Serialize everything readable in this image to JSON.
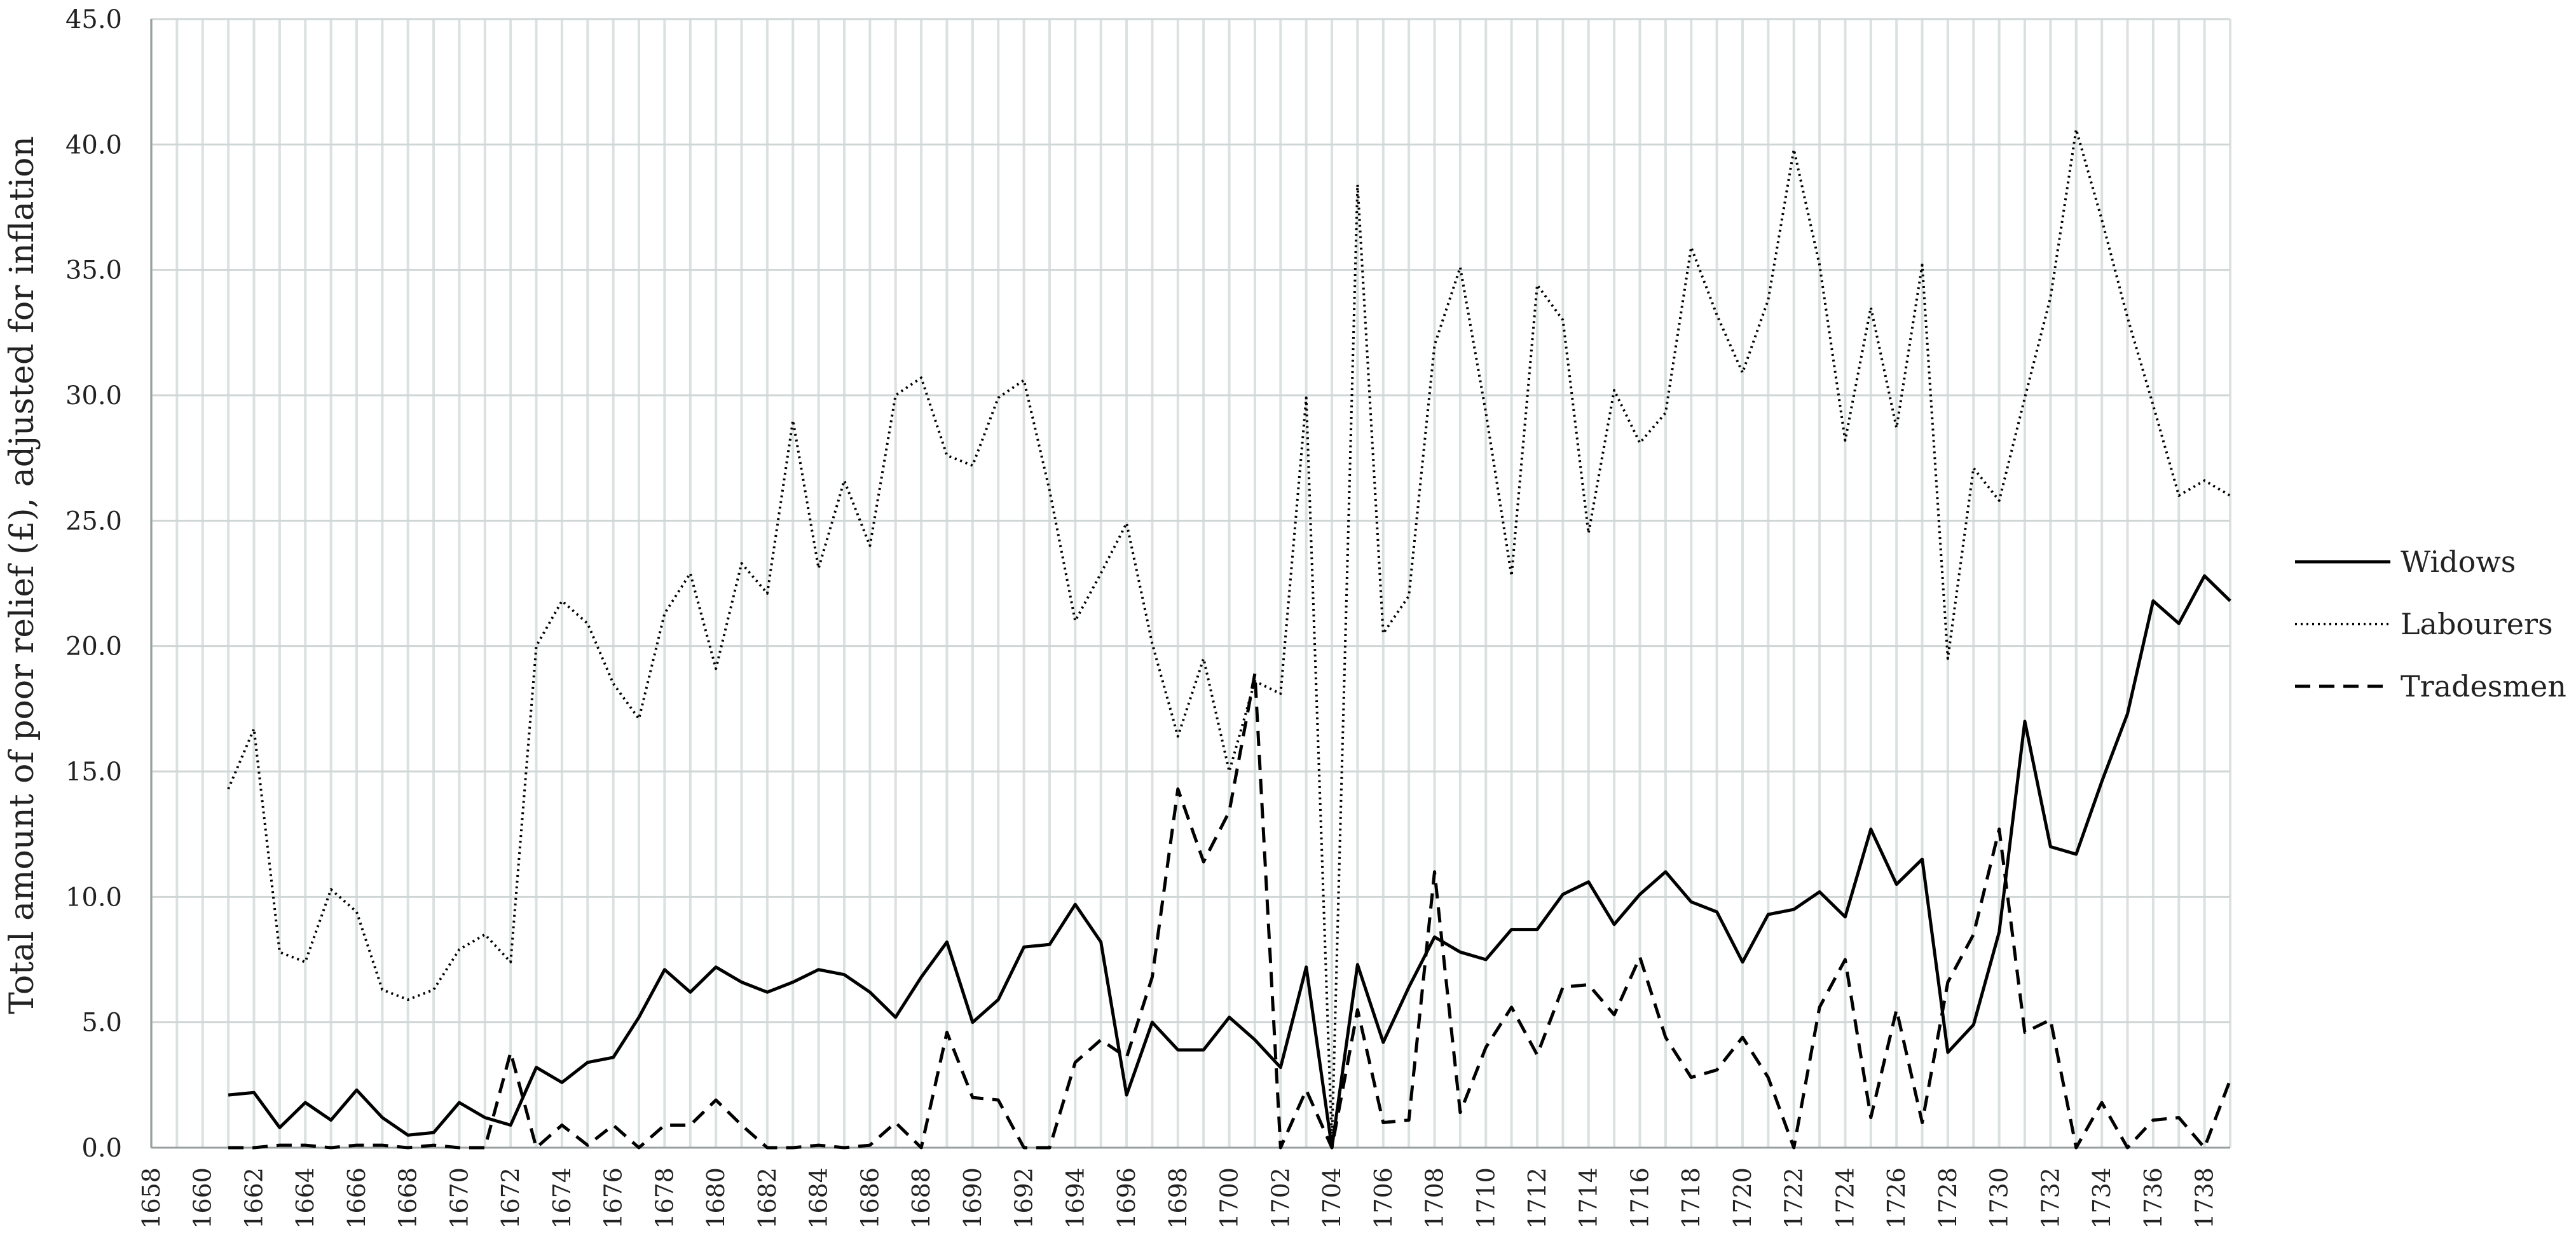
{
  "chart_data": {
    "type": "line",
    "title": "",
    "xlabel": "",
    "ylabel": "Total amount of poor relief (£), adjusted for inflation",
    "ylim": [
      0,
      45
    ],
    "yticks": [
      "0.0",
      "5.0",
      "10.0",
      "15.0",
      "20.0",
      "25.0",
      "30.0",
      "35.0",
      "40.0",
      "45.0"
    ],
    "xlim": [
      1658,
      1739
    ],
    "xticks": [
      1658,
      1660,
      1662,
      1664,
      1666,
      1668,
      1670,
      1672,
      1674,
      1676,
      1678,
      1680,
      1682,
      1684,
      1686,
      1688,
      1690,
      1692,
      1694,
      1696,
      1698,
      1700,
      1702,
      1704,
      1706,
      1708,
      1710,
      1712,
      1714,
      1716,
      1718,
      1720,
      1722,
      1724,
      1726,
      1728,
      1730,
      1732,
      1734,
      1736,
      1738
    ],
    "grid": "vertical-and-horizontal",
    "legend": "right",
    "series": [
      {
        "name": "Widows",
        "style": "solid",
        "color": "#000000",
        "x": [
          1661,
          1662,
          1663,
          1664,
          1665,
          1666,
          1667,
          1668,
          1669,
          1670,
          1671,
          1672,
          1673,
          1674,
          1675,
          1676,
          1677,
          1678,
          1679,
          1680,
          1681,
          1682,
          1683,
          1684,
          1685,
          1686,
          1687,
          1688,
          1689,
          1690,
          1691,
          1692,
          1693,
          1694,
          1695,
          1696,
          1697,
          1698,
          1699,
          1700,
          1701,
          1702,
          1703,
          1704,
          1705,
          1706,
          1707,
          1708,
          1709,
          1710,
          1711,
          1712,
          1713,
          1714,
          1715,
          1716,
          1717,
          1718,
          1719,
          1720,
          1721,
          1722,
          1723,
          1724,
          1725,
          1726,
          1727,
          1728,
          1729,
          1730,
          1731,
          1732,
          1733,
          1734,
          1735,
          1736,
          1737,
          1738,
          1739
        ],
        "values": [
          2.1,
          2.2,
          0.8,
          1.8,
          1.1,
          2.3,
          1.2,
          0.5,
          0.6,
          1.8,
          1.2,
          0.9,
          3.2,
          2.6,
          3.4,
          3.6,
          5.2,
          7.1,
          6.2,
          7.2,
          6.6,
          6.2,
          6.6,
          7.1,
          6.9,
          6.2,
          5.2,
          6.8,
          8.2,
          5.0,
          5.9,
          8.0,
          8.1,
          9.7,
          8.2,
          2.1,
          5.0,
          3.9,
          3.9,
          5.2,
          4.3,
          3.2,
          7.2,
          0.0,
          7.3,
          4.2,
          6.4,
          8.4,
          7.8,
          7.5,
          8.7,
          8.7,
          10.1,
          10.6,
          8.9,
          10.1,
          11.0,
          9.8,
          9.4,
          7.4,
          9.3,
          9.5,
          10.2,
          9.2,
          12.7,
          10.5,
          11.5,
          3.8,
          4.9,
          8.6,
          17.0,
          12.0,
          11.7,
          14.6,
          17.3,
          21.8,
          20.9,
          22.8,
          21.8
        ]
      },
      {
        "name": "Labourers",
        "style": "dotted",
        "color": "#000000",
        "x": [
          1661,
          1662,
          1663,
          1664,
          1665,
          1666,
          1667,
          1668,
          1669,
          1670,
          1671,
          1672,
          1673,
          1674,
          1675,
          1676,
          1677,
          1678,
          1679,
          1680,
          1681,
          1682,
          1683,
          1684,
          1685,
          1686,
          1687,
          1688,
          1689,
          1690,
          1691,
          1692,
          1693,
          1694,
          1695,
          1696,
          1697,
          1698,
          1699,
          1700,
          1701,
          1702,
          1703,
          1704,
          1705,
          1706,
          1707,
          1708,
          1709,
          1710,
          1711,
          1712,
          1713,
          1714,
          1715,
          1716,
          1717,
          1718,
          1719,
          1720,
          1721,
          1722,
          1723,
          1724,
          1725,
          1726,
          1727,
          1728,
          1729,
          1730,
          1731,
          1732,
          1733,
          1734,
          1735,
          1736,
          1737,
          1738,
          1739
        ],
        "values": [
          14.3,
          16.7,
          7.8,
          7.4,
          10.3,
          9.4,
          6.3,
          5.9,
          6.3,
          7.9,
          8.5,
          7.4,
          20.0,
          21.8,
          20.9,
          18.5,
          17.1,
          21.3,
          22.9,
          19.1,
          23.3,
          22.1,
          29.0,
          23.1,
          26.6,
          24.0,
          30.0,
          30.7,
          27.6,
          27.2,
          29.9,
          30.6,
          26.2,
          21.0,
          22.9,
          24.9,
          20.1,
          16.4,
          19.5,
          15.0,
          18.6,
          18.1,
          29.9,
          0.2,
          38.4,
          20.5,
          22.0,
          32.0,
          35.1,
          29.3,
          22.8,
          34.4,
          33.0,
          24.5,
          30.2,
          28.1,
          29.3,
          35.9,
          33.2,
          30.9,
          33.8,
          39.8,
          35.2,
          28.2,
          33.5,
          28.7,
          35.2,
          19.5,
          27.1,
          25.8,
          29.9,
          33.9,
          40.6,
          37.0,
          33.1,
          29.6,
          26.0,
          26.6,
          26.0
        ]
      },
      {
        "name": "Tradesmen",
        "style": "dashed",
        "color": "#000000",
        "x": [
          1661,
          1662,
          1663,
          1664,
          1665,
          1666,
          1667,
          1668,
          1669,
          1670,
          1671,
          1672,
          1673,
          1674,
          1675,
          1676,
          1677,
          1678,
          1679,
          1680,
          1681,
          1682,
          1683,
          1684,
          1685,
          1686,
          1687,
          1688,
          1689,
          1690,
          1691,
          1692,
          1693,
          1694,
          1695,
          1696,
          1697,
          1698,
          1699,
          1700,
          1701,
          1702,
          1703,
          1704,
          1705,
          1706,
          1707,
          1708,
          1709,
          1710,
          1711,
          1712,
          1713,
          1714,
          1715,
          1716,
          1717,
          1718,
          1719,
          1720,
          1721,
          1722,
          1723,
          1724,
          1725,
          1726,
          1727,
          1728,
          1729,
          1730,
          1731,
          1732,
          1733,
          1734,
          1735,
          1736,
          1737,
          1738,
          1739
        ],
        "values": [
          0.0,
          0.0,
          0.1,
          0.1,
          0.0,
          0.1,
          0.1,
          0.0,
          0.1,
          0.0,
          0.0,
          3.8,
          0.0,
          0.9,
          0.1,
          0.9,
          0.0,
          0.9,
          0.9,
          1.9,
          0.9,
          0.0,
          0.0,
          0.1,
          0.0,
          0.1,
          1.0,
          0.0,
          4.6,
          2.0,
          1.9,
          0.0,
          0.0,
          3.4,
          4.3,
          3.6,
          6.8,
          14.3,
          11.4,
          13.4,
          18.9,
          0.0,
          2.3,
          0.0,
          5.5,
          1.0,
          1.1,
          11.0,
          1.4,
          4.0,
          5.6,
          3.7,
          6.4,
          6.5,
          5.3,
          7.6,
          4.4,
          2.8,
          3.1,
          4.4,
          2.8,
          0.0,
          5.6,
          7.5,
          1.2,
          5.5,
          1.0,
          6.6,
          8.5,
          12.7,
          4.6,
          5.1,
          0.0,
          1.8,
          0.0,
          1.1,
          1.2,
          0.0,
          2.7
        ]
      }
    ]
  }
}
